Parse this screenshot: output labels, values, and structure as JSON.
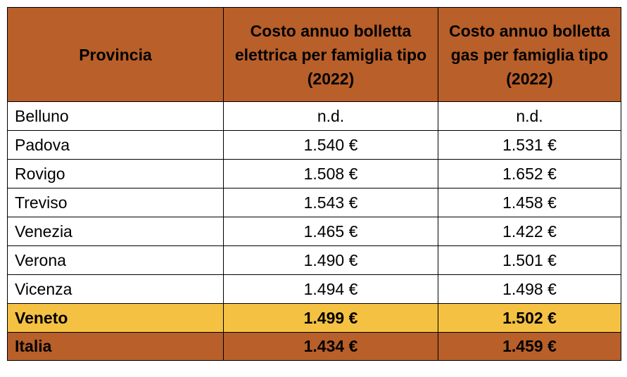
{
  "table": {
    "headers": [
      "Provincia",
      "Costo annuo bolletta elettrica per famiglia tipo (2022)",
      "Costo annuo bolletta gas per famiglia tipo (2022)"
    ],
    "rows": [
      {
        "province": "Belluno",
        "electric": "n.d.",
        "gas": "n.d."
      },
      {
        "province": "Padova",
        "electric": "1.540 €",
        "gas": "1.531 €"
      },
      {
        "province": "Rovigo",
        "electric": "1.508 €",
        "gas": "1.652 €"
      },
      {
        "province": "Treviso",
        "electric": "1.543 €",
        "gas": "1.458 €"
      },
      {
        "province": "Venezia",
        "electric": "1.465 €",
        "gas": "1.422 €"
      },
      {
        "province": "Verona",
        "electric": "1.490 €",
        "gas": "1.501 €"
      },
      {
        "province": "Vicenza",
        "electric": "1.494 €",
        "gas": "1.498 €"
      }
    ],
    "region_total": {
      "province": "Veneto",
      "electric": "1.499 €",
      "gas": "1.502 €"
    },
    "national_total": {
      "province": "Italia",
      "electric": "1.434 €",
      "gas": "1.459 €"
    }
  },
  "colors": {
    "header_bg": "#b85f2a",
    "region_bg": "#f4c142",
    "national_bg": "#b85f2a",
    "border": "#000000"
  }
}
